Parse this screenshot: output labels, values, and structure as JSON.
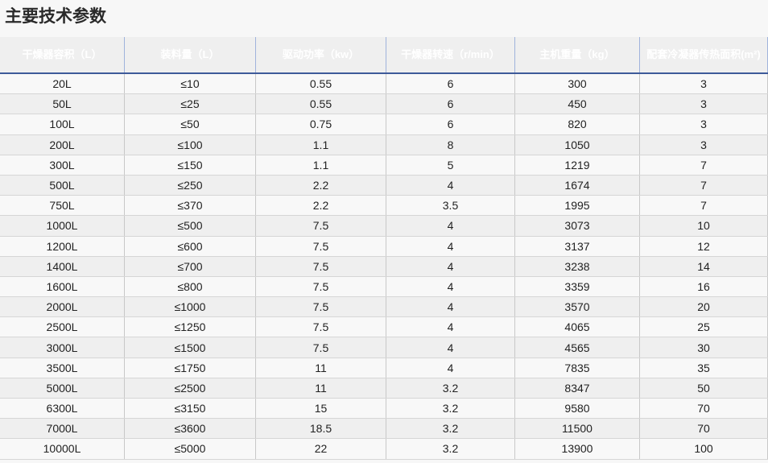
{
  "title": "主要技术参数",
  "table": {
    "header": [
      "干燥器容积（L）",
      "装料量（L）",
      "驱动功率（kw）",
      "干燥器转速（r/min）",
      "主机重量（kg）",
      "配套冷凝器传热面积(m²)"
    ],
    "rows": [
      [
        "20L",
        "≤10",
        "0.55",
        "6",
        "300",
        "3"
      ],
      [
        "50L",
        "≤25",
        "0.55",
        "6",
        "450",
        "3"
      ],
      [
        "100L",
        "≤50",
        "0.75",
        "6",
        "820",
        "3"
      ],
      [
        "200L",
        "≤100",
        "1.1",
        "8",
        "1050",
        "3"
      ],
      [
        "300L",
        "≤150",
        "1.1",
        "5",
        "1219",
        "7"
      ],
      [
        "500L",
        "≤250",
        "2.2",
        "4",
        "1674",
        "7"
      ],
      [
        "750L",
        "≤370",
        "2.2",
        "3.5",
        "1995",
        "7"
      ],
      [
        "1000L",
        "≤500",
        "7.5",
        "4",
        "3073",
        "10"
      ],
      [
        "1200L",
        "≤600",
        "7.5",
        "4",
        "3137",
        "12"
      ],
      [
        "1400L",
        "≤700",
        "7.5",
        "4",
        "3238",
        "14"
      ],
      [
        "1600L",
        "≤800",
        "7.5",
        "4",
        "3359",
        "16"
      ],
      [
        "2000L",
        "≤1000",
        "7.5",
        "4",
        "3570",
        "20"
      ],
      [
        "2500L",
        "≤1250",
        "7.5",
        "4",
        "4065",
        "25"
      ],
      [
        "3000L",
        "≤1500",
        "7.5",
        "4",
        "4565",
        "30"
      ],
      [
        "3500L",
        "≤1750",
        "11",
        "4",
        "7835",
        "35"
      ],
      [
        "5000L",
        "≤2500",
        "11",
        "3.2",
        "8347",
        "50"
      ],
      [
        "6300L",
        "≤3150",
        "15",
        "3.2",
        "9580",
        "70"
      ],
      [
        "7000L",
        "≤3600",
        "18.5",
        "3.2",
        "11500",
        "70"
      ],
      [
        "10000L",
        "≤5000",
        "22",
        "3.2",
        "13900",
        "100"
      ]
    ]
  }
}
